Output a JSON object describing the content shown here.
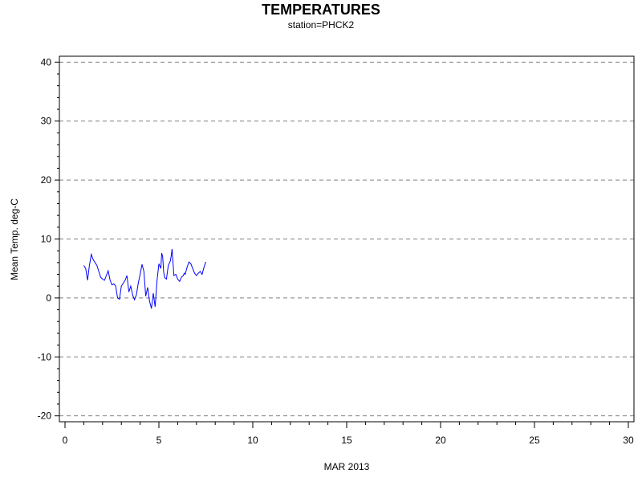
{
  "chart_data": {
    "type": "line",
    "title": "TEMPERATURES",
    "subtitle": "station=PHCK2",
    "xlabel": "MAR 2013",
    "ylabel": "Mean Temp. deg-C",
    "xlim": [
      -0.3,
      30.3
    ],
    "ylim": [
      -21,
      41
    ],
    "x_ticks": [
      0,
      5,
      10,
      15,
      20,
      25,
      30
    ],
    "y_ticks": [
      -20,
      -10,
      0,
      10,
      20,
      30,
      40
    ],
    "grid": "horizontal-dashed",
    "line_color": "#0000ff",
    "series": [
      {
        "x": [
          1.0,
          1.1,
          1.2,
          1.3,
          1.4,
          1.5,
          1.6,
          1.7,
          1.8,
          1.9,
          2.0,
          2.1,
          2.2,
          2.3,
          2.4,
          2.5,
          2.6,
          2.7,
          2.8,
          2.9,
          3.0,
          3.1,
          3.2,
          3.3,
          3.4,
          3.5,
          3.6,
          3.7,
          3.8,
          3.9,
          4.0,
          4.1,
          4.2,
          4.3,
          4.4,
          4.5,
          4.6,
          4.7,
          4.8,
          4.9,
          5.0,
          5.1,
          5.15,
          5.2,
          5.25,
          5.3,
          5.4,
          5.5,
          5.6,
          5.65,
          5.7,
          5.8,
          5.9,
          6.0,
          6.1,
          6.2,
          6.3,
          6.35,
          6.4,
          6.5,
          6.6,
          6.7,
          6.8,
          6.9,
          7.0,
          7.1,
          7.2,
          7.3,
          7.4,
          7.5
        ],
        "y": [
          5.5,
          5.0,
          3.0,
          5.5,
          7.4,
          6.5,
          6.0,
          5.5,
          4.5,
          3.5,
          3.2,
          3.0,
          3.8,
          4.6,
          3.0,
          2.2,
          2.4,
          2.0,
          0.0,
          -0.2,
          2.0,
          2.5,
          3.0,
          3.8,
          1.0,
          2.0,
          0.5,
          -0.3,
          0.5,
          2.5,
          4.0,
          5.7,
          4.5,
          0.3,
          1.8,
          -0.5,
          -1.8,
          0.8,
          -1.5,
          3.0,
          5.8,
          5.0,
          7.6,
          7.0,
          4.5,
          3.5,
          3.2,
          5.5,
          6.2,
          7.0,
          8.3,
          3.8,
          4.0,
          3.2,
          2.8,
          3.5,
          3.8,
          4.2,
          4.0,
          5.2,
          6.1,
          5.8,
          5.0,
          4.2,
          3.8,
          4.2,
          4.5,
          4.0,
          5.2,
          6.1
        ]
      }
    ]
  }
}
